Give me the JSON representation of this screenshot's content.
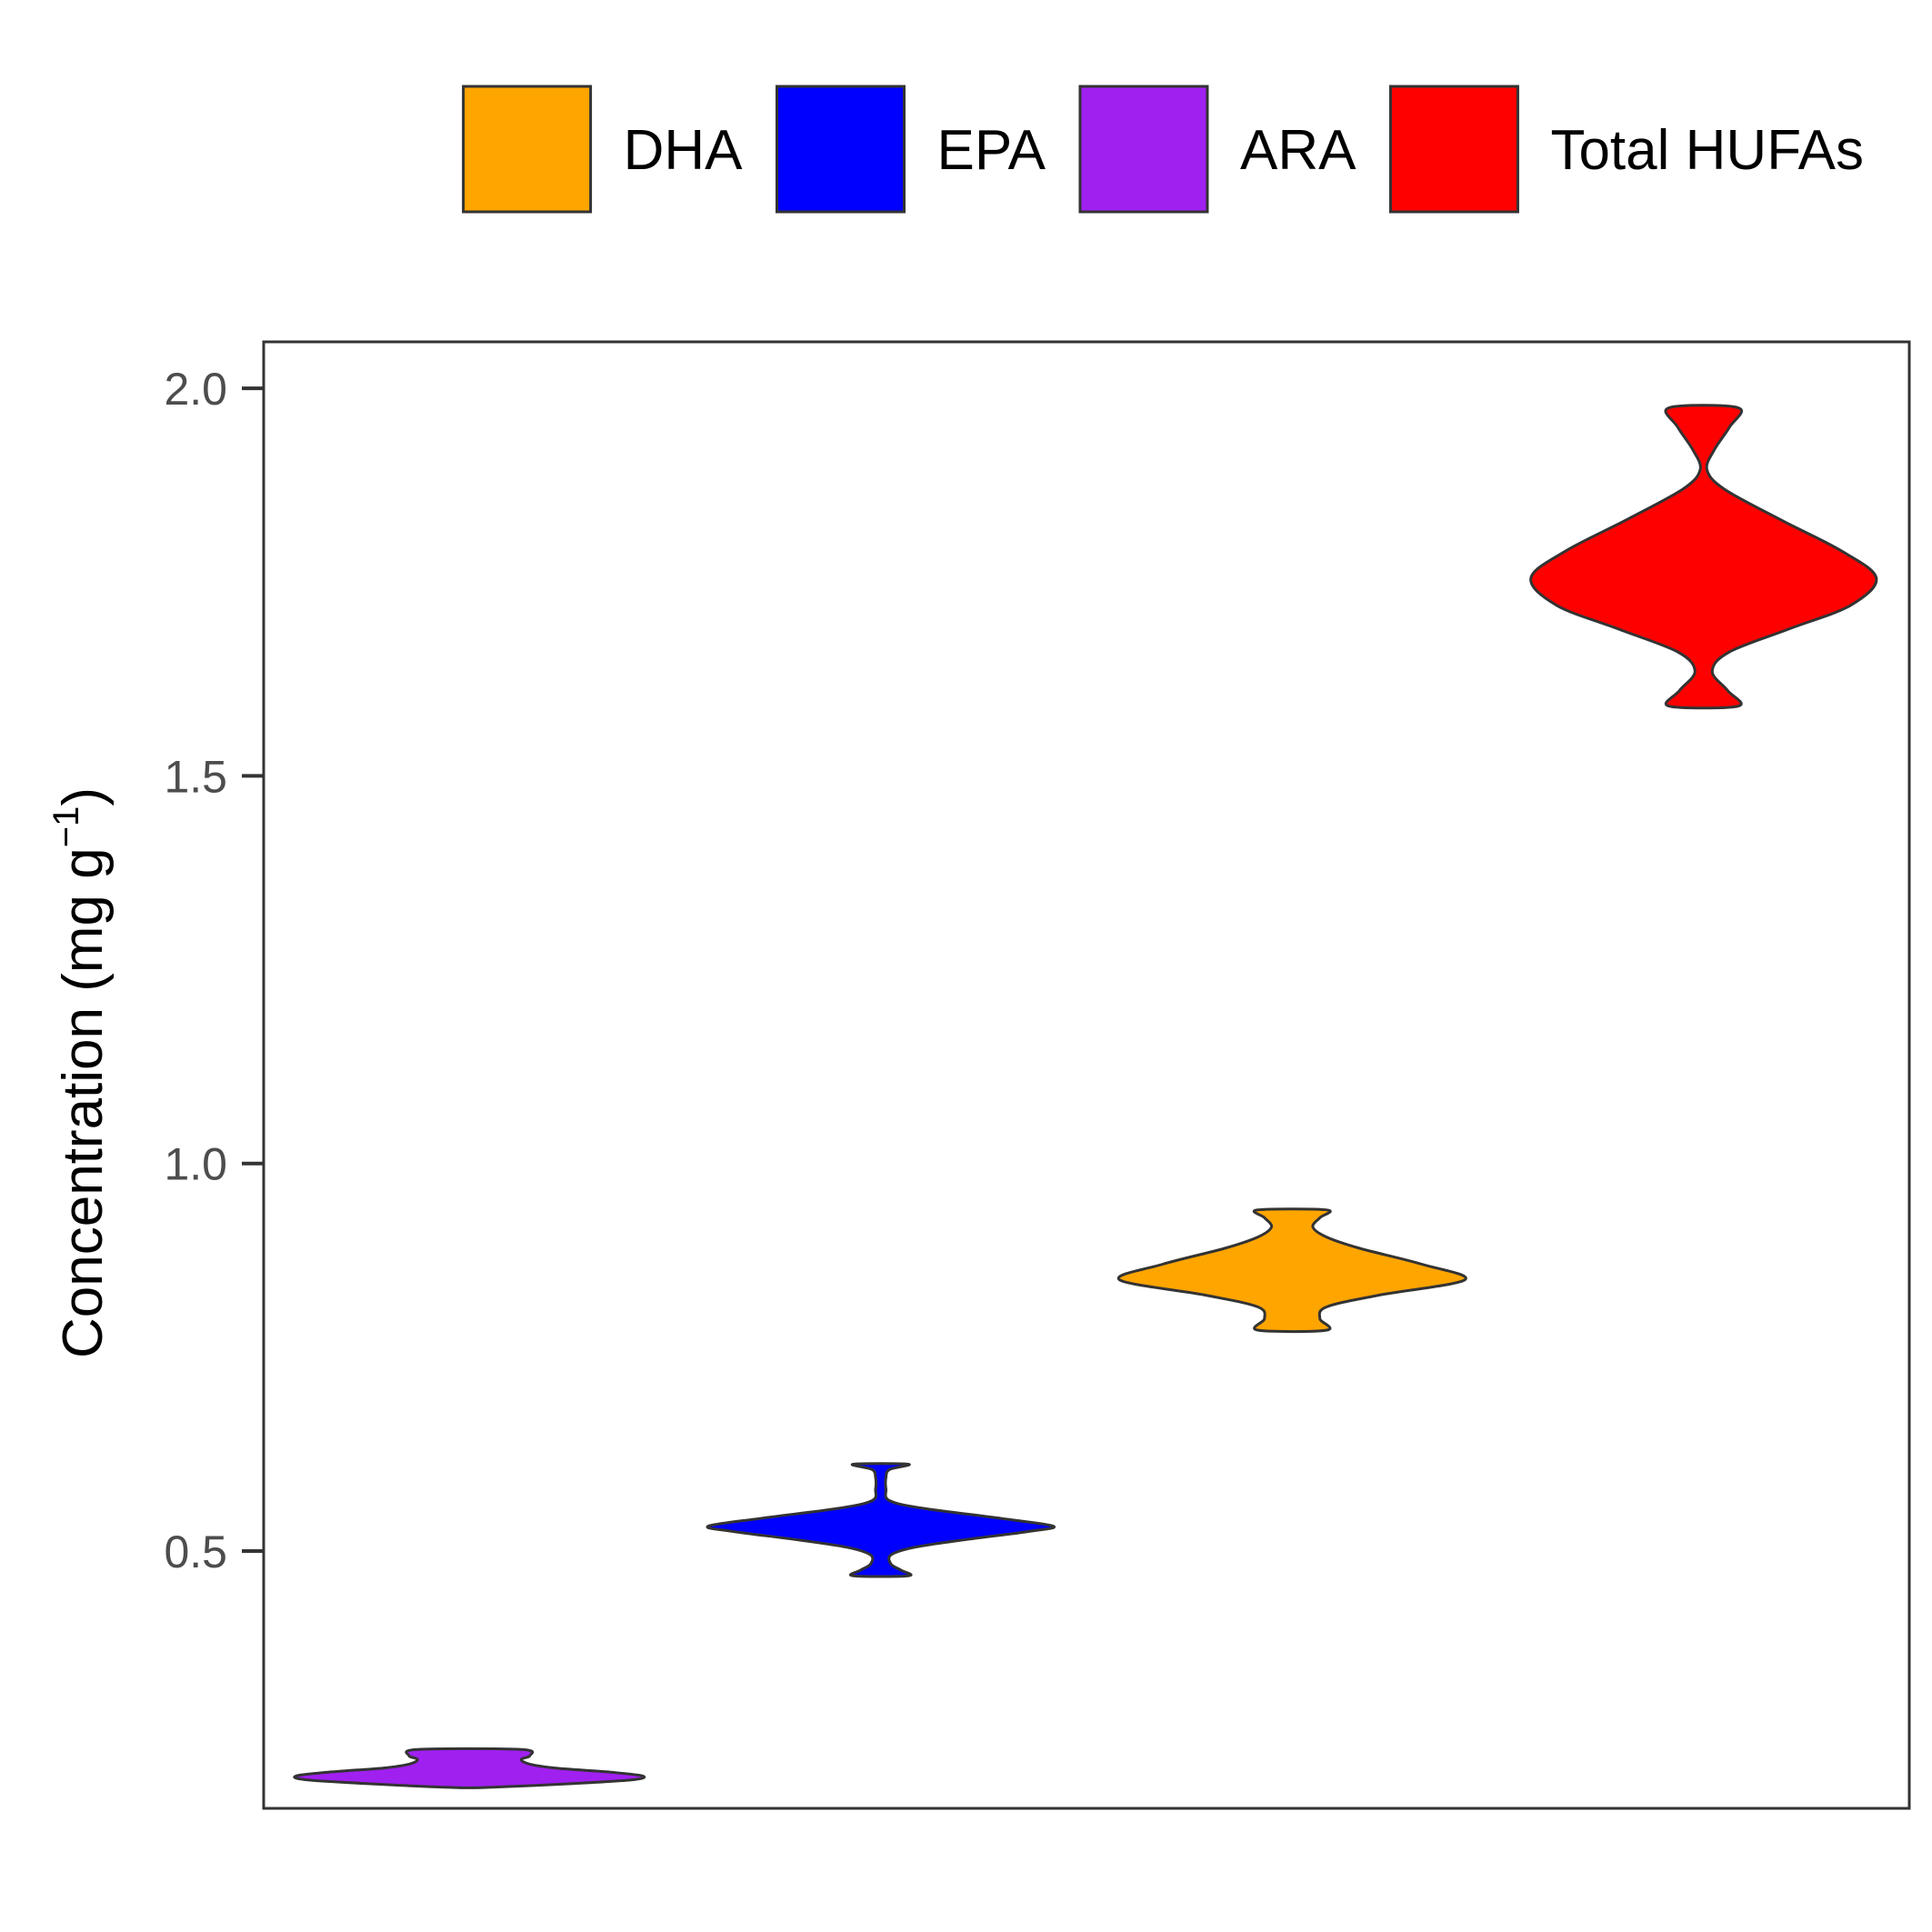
{
  "chart_data": {
    "type": "violin",
    "title": "",
    "xlabel": "",
    "ylabel": {
      "main": "Concentration (mg  g",
      "superscript": "−1",
      "close": ")"
    },
    "ylim": [
      0.168,
      2.06
    ],
    "yticks": [
      0.5,
      1.0,
      1.5,
      2.0
    ],
    "ytick_labels": [
      "0.5",
      "1.0",
      "1.5",
      "2.0"
    ],
    "grid": false,
    "legend": {
      "position": "top",
      "entries": [
        {
          "name": "DHA",
          "color": "#FFA500"
        },
        {
          "name": "EPA",
          "color": "#0000FF"
        },
        {
          "name": "ARA",
          "color": "#A020F0"
        },
        {
          "name": "Total HUFAs",
          "color": "#FF0000"
        }
      ]
    },
    "series": [
      {
        "name": "ARA",
        "color": "#A020F0",
        "slot": 1,
        "profile": [
          [
            0.195,
            0.1
          ],
          [
            0.2,
            0.6
          ],
          [
            0.205,
            0.95
          ],
          [
            0.21,
            1.0
          ],
          [
            0.215,
            0.8
          ],
          [
            0.22,
            0.5
          ],
          [
            0.225,
            0.35
          ],
          [
            0.231,
            0.3
          ],
          [
            0.236,
            0.35
          ],
          [
            0.244,
            0.3
          ]
        ]
      },
      {
        "name": "EPA",
        "color": "#0000FF",
        "slot": 2,
        "profile": [
          [
            0.468,
            0.16
          ],
          [
            0.475,
            0.12
          ],
          [
            0.483,
            0.06
          ],
          [
            0.495,
            0.06
          ],
          [
            0.505,
            0.2
          ],
          [
            0.515,
            0.5
          ],
          [
            0.525,
            0.85
          ],
          [
            0.532,
            1.0
          ],
          [
            0.542,
            0.7
          ],
          [
            0.555,
            0.25
          ],
          [
            0.565,
            0.05
          ],
          [
            0.58,
            0.03
          ],
          [
            0.595,
            0.03
          ],
          [
            0.605,
            0.05
          ],
          [
            0.612,
            0.16
          ]
        ]
      },
      {
        "name": "DHA",
        "color": "#FFA500",
        "slot": 3,
        "profile": [
          [
            0.785,
            0.2
          ],
          [
            0.8,
            0.16
          ],
          [
            0.815,
            0.2
          ],
          [
            0.83,
            0.5
          ],
          [
            0.85,
            1.0
          ],
          [
            0.87,
            0.75
          ],
          [
            0.89,
            0.4
          ],
          [
            0.905,
            0.2
          ],
          [
            0.918,
            0.12
          ],
          [
            0.93,
            0.16
          ],
          [
            0.94,
            0.2
          ]
        ]
      },
      {
        "name": "Total HUFAs",
        "color": "#FF0000",
        "slot": 4,
        "profile": [
          [
            1.59,
            0.2
          ],
          [
            1.61,
            0.14
          ],
          [
            1.635,
            0.05
          ],
          [
            1.66,
            0.15
          ],
          [
            1.69,
            0.5
          ],
          [
            1.72,
            0.85
          ],
          [
            1.755,
            1.0
          ],
          [
            1.79,
            0.8
          ],
          [
            1.83,
            0.45
          ],
          [
            1.87,
            0.12
          ],
          [
            1.895,
            0.02
          ],
          [
            1.92,
            0.06
          ],
          [
            1.95,
            0.15
          ],
          [
            1.975,
            0.2
          ]
        ]
      }
    ]
  }
}
